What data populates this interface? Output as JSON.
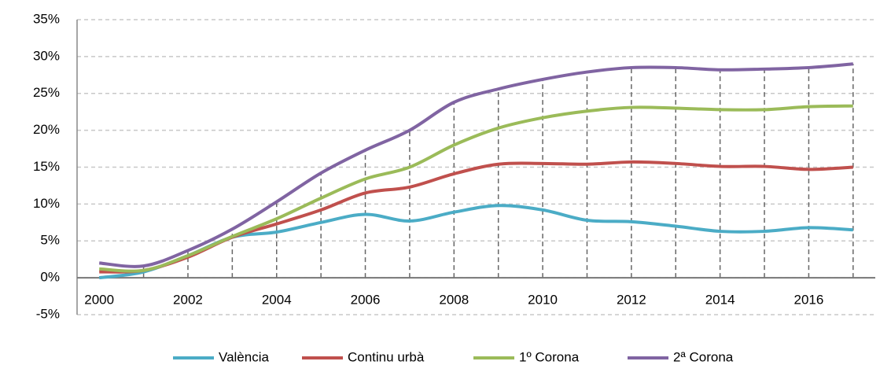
{
  "chart_data": {
    "type": "line",
    "categories": [
      "2000",
      null,
      "2002",
      null,
      "2004",
      null,
      "2006",
      null,
      "2008",
      null,
      "2010",
      null,
      "2012",
      null,
      "2014",
      null,
      "2016",
      null
    ],
    "series": [
      {
        "name": "València",
        "color": "#4bacc6",
        "values": [
          0,
          0.8,
          3,
          5.5,
          6.2,
          7.5,
          8.6,
          7.7,
          8.9,
          9.8,
          9.2,
          7.8,
          7.6,
          7,
          6.3,
          6.3,
          6.8,
          6.5
        ]
      },
      {
        "name": "Continu urbà",
        "color": "#c0504d",
        "values": [
          0.8,
          1,
          2.8,
          5.5,
          7.3,
          9.2,
          11.5,
          12.3,
          14.1,
          15.4,
          15.5,
          15.4,
          15.7,
          15.5,
          15.1,
          15.1,
          14.7,
          15
        ]
      },
      {
        "name": "1º Corona",
        "color": "#9bbb59",
        "values": [
          1.2,
          1,
          3,
          5.6,
          8,
          10.8,
          13.4,
          15,
          18,
          20.3,
          21.7,
          22.6,
          23.1,
          23,
          22.8,
          22.8,
          23.2,
          23.3
        ]
      },
      {
        "name": "2ª Corona",
        "color": "#8064a2",
        "values": [
          2,
          1.6,
          3.7,
          6.6,
          10.3,
          14.2,
          17.3,
          20,
          23.8,
          25.6,
          26.9,
          27.9,
          28.5,
          28.5,
          28.2,
          28.3,
          28.5,
          29
        ]
      }
    ],
    "ylim": [
      -5,
      35
    ],
    "yticks": [
      {
        "value": -5,
        "label": "-5%"
      },
      {
        "value": 0,
        "label": "0%"
      },
      {
        "value": 5,
        "label": "5%"
      },
      {
        "value": 10,
        "label": "10%"
      },
      {
        "value": 15,
        "label": "15%"
      },
      {
        "value": 20,
        "label": "20%"
      },
      {
        "value": 25,
        "label": "25%"
      },
      {
        "value": 30,
        "label": "30%"
      },
      {
        "value": 35,
        "label": "35%"
      }
    ],
    "grid": true,
    "legend": "bottom"
  }
}
